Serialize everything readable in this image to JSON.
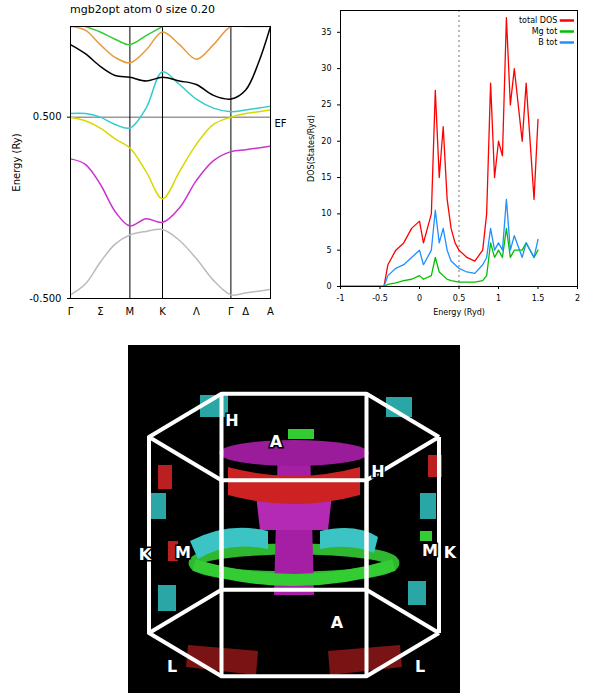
{
  "chart_data": [
    {
      "type": "line",
      "title": "mgb2opt atom 0 size 0.20",
      "y_label": "Energy (Ry)",
      "x": [
        0,
        0.074,
        0.149,
        0.223,
        0.297,
        0.378,
        0.46,
        0.545,
        0.629,
        0.715,
        0.802,
        0.876,
        0.94,
        1.0
      ],
      "xlim": [
        0,
        1.0
      ],
      "xticks": [
        {
          "value": 0,
          "label": "Γ"
        },
        {
          "value": 0.149,
          "label": "Σ"
        },
        {
          "value": 0.297,
          "label": "M"
        },
        {
          "value": 0.46,
          "label": "K"
        },
        {
          "value": 0.629,
          "label": "Λ"
        },
        {
          "value": 0.802,
          "label": "Γ"
        },
        {
          "value": 0.876,
          "label": "Δ"
        },
        {
          "value": 1.0,
          "label": "A"
        }
      ],
      "ylim": [
        -0.5,
        1.0
      ],
      "yticks": [
        {
          "value": -0.5,
          "label": "-0.500"
        },
        {
          "value": 0.5,
          "label": "0.500"
        }
      ],
      "vlines": [
        0.297,
        0.46,
        0.802
      ],
      "annotations": [
        {
          "text": "EF",
          "y": 0.5
        }
      ],
      "series": [
        {
          "color": "#bbbbbb",
          "values": [
            -0.48,
            -0.42,
            -0.3,
            -0.2,
            -0.15,
            -0.13,
            -0.12,
            -0.18,
            -0.28,
            -0.4,
            -0.48,
            -0.47,
            -0.46,
            -0.45
          ]
        },
        {
          "color": "#cc33cc",
          "values": [
            0.27,
            0.24,
            0.13,
            -0.02,
            -0.1,
            -0.06,
            -0.08,
            0.0,
            0.15,
            0.26,
            0.31,
            0.32,
            0.33,
            0.34
          ]
        },
        {
          "color": "#d8d800",
          "values": [
            0.5,
            0.48,
            0.44,
            0.38,
            0.33,
            0.2,
            0.05,
            0.2,
            0.35,
            0.46,
            0.5,
            0.52,
            0.53,
            0.54
          ]
        },
        {
          "color": "#33cccc",
          "values": [
            0.52,
            0.52,
            0.5,
            0.46,
            0.44,
            0.55,
            0.75,
            0.68,
            0.6,
            0.55,
            0.53,
            0.54,
            0.55,
            0.56
          ]
        },
        {
          "color": "#000000",
          "values": [
            0.9,
            0.85,
            0.78,
            0.73,
            0.72,
            0.7,
            0.72,
            0.7,
            0.68,
            0.62,
            0.6,
            0.65,
            0.8,
            1.0
          ]
        },
        {
          "color": "#e69a3c",
          "values": [
            1.0,
            0.98,
            0.9,
            0.83,
            0.8,
            0.87,
            0.97,
            0.9,
            0.82,
            0.9,
            1.0,
            1.0,
            1.0,
            1.0
          ]
        },
        {
          "color": "#33cc33",
          "values": [
            null,
            1.0,
            0.97,
            0.93,
            0.9,
            0.95,
            1.0,
            null,
            null,
            null,
            null,
            null,
            null,
            null
          ]
        }
      ]
    },
    {
      "type": "line",
      "x_label": "Energy (Ryd)",
      "y_label": "DOS(States/Ryd)",
      "x": [
        -1,
        -0.45,
        -0.4,
        -0.3,
        -0.2,
        -0.1,
        0,
        0.05,
        0.15,
        0.2,
        0.25,
        0.3,
        0.35,
        0.4,
        0.45,
        0.5,
        0.6,
        0.7,
        0.8,
        0.85,
        0.9,
        0.95,
        1.0,
        1.05,
        1.1,
        1.15,
        1.2,
        1.3,
        1.35,
        1.45,
        1.5
      ],
      "xlim": [
        -1,
        2
      ],
      "xticks": [
        -1,
        -0.5,
        0,
        0.5,
        1,
        1.5,
        2
      ],
      "ylim": [
        0,
        38
      ],
      "yticks": [
        0,
        5,
        10,
        15,
        20,
        25,
        30,
        35
      ],
      "vlines": [
        0.5
      ],
      "legend": "top-right",
      "series": [
        {
          "name": "total DOS",
          "color": "#ff0000",
          "values": [
            0,
            0,
            3,
            5,
            6,
            8,
            9,
            6,
            10,
            27,
            15,
            22,
            12,
            8,
            6,
            5,
            4,
            3.5,
            5,
            10,
            28,
            15,
            20,
            18,
            37,
            25,
            30,
            20,
            28,
            12,
            23
          ]
        },
        {
          "name": "Mg tot",
          "color": "#00c000",
          "values": [
            0,
            0,
            0.3,
            0.5,
            0.8,
            1,
            1.5,
            1,
            1.5,
            4,
            2,
            1.5,
            1,
            0.8,
            0.7,
            0.6,
            0.6,
            0.6,
            0.8,
            1.5,
            6,
            4,
            5,
            4,
            8,
            4,
            5,
            5,
            6,
            4,
            5
          ]
        },
        {
          "name": "B tot",
          "color": "#1e90ff",
          "values": [
            0,
            0,
            1.5,
            2.5,
            3,
            4,
            5,
            3,
            5,
            10.5,
            6,
            8,
            5,
            3.5,
            3,
            2.5,
            2,
            1.8,
            3,
            4,
            8,
            5,
            6,
            5,
            12,
            5,
            7,
            4,
            6,
            4,
            6.5
          ]
        }
      ]
    }
  ],
  "fermi_surface": {
    "labels": [
      "H",
      "A",
      "H",
      "K",
      "M",
      "M",
      "K",
      "A",
      "L",
      "L"
    ]
  }
}
